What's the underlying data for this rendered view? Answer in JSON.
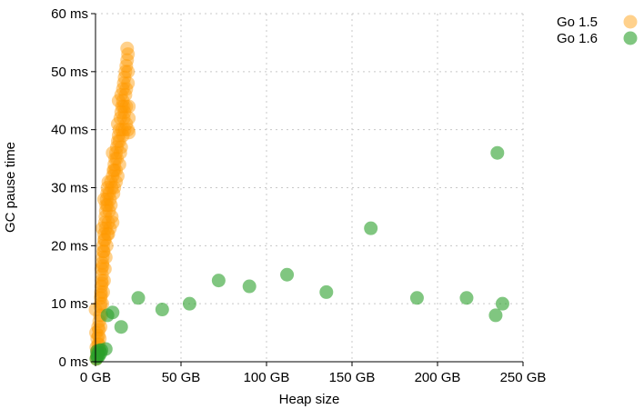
{
  "chart_data": {
    "type": "scatter",
    "xlabel": "Heap size",
    "ylabel": "GC pause time",
    "xlim": [
      0,
      250
    ],
    "ylim": [
      0,
      60
    ],
    "x_ticks": [
      {
        "value": 0,
        "label": "0 GB"
      },
      {
        "value": 50,
        "label": "50 GB"
      },
      {
        "value": 100,
        "label": "100 GB"
      },
      {
        "value": 150,
        "label": "150 GB"
      },
      {
        "value": 200,
        "label": "200 GB"
      },
      {
        "value": 250,
        "label": "250 GB"
      }
    ],
    "y_ticks": [
      {
        "value": 0,
        "label": "0 ms"
      },
      {
        "value": 10,
        "label": "10 ms"
      },
      {
        "value": 20,
        "label": "20 ms"
      },
      {
        "value": 30,
        "label": "30 ms"
      },
      {
        "value": 40,
        "label": "40 ms"
      },
      {
        "value": 50,
        "label": "50 ms"
      },
      {
        "value": 60,
        "label": "60 ms"
      }
    ],
    "grid": true,
    "legend_position": "top-right",
    "series": [
      {
        "name": "Go 1.5",
        "color": "#ff9900",
        "opacity": 0.45,
        "points": [
          [
            0.5,
            0.5
          ],
          [
            0.8,
            1.0
          ],
          [
            1.0,
            1.5
          ],
          [
            1.2,
            2.0
          ],
          [
            0.5,
            2.5
          ],
          [
            1.5,
            3.0
          ],
          [
            1.0,
            4.0
          ],
          [
            1.8,
            4.5
          ],
          [
            0.3,
            5.0
          ],
          [
            2.0,
            5.5
          ],
          [
            1.5,
            6.0
          ],
          [
            2.2,
            7.0
          ],
          [
            2.5,
            8.0
          ],
          [
            0.0,
            9.0
          ],
          [
            2.8,
            9.5
          ],
          [
            3.0,
            10.0
          ],
          [
            3.0,
            11.0
          ],
          [
            3.2,
            12.0
          ],
          [
            3.4,
            13.0
          ],
          [
            3.6,
            14.0
          ],
          [
            3.8,
            15.0
          ],
          [
            3.5,
            16.0
          ],
          [
            4.0,
            17.0
          ],
          [
            4.2,
            18.0
          ],
          [
            4.5,
            19.0
          ],
          [
            4.5,
            20.0
          ],
          [
            5.0,
            21.0
          ],
          [
            4.0,
            23.0
          ],
          [
            5.0,
            22.0
          ],
          [
            5.5,
            24.0
          ],
          [
            5.8,
            25.0
          ],
          [
            6.0,
            26.0
          ],
          [
            6.2,
            27.0
          ],
          [
            6.5,
            28.0
          ],
          [
            6.8,
            29.0
          ],
          [
            7.0,
            30.0
          ],
          [
            5.0,
            28.0
          ],
          [
            7.5,
            31.0
          ],
          [
            9.0,
            31.0
          ],
          [
            10.0,
            32.0
          ],
          [
            10.5,
            33.0
          ],
          [
            11.0,
            34.0
          ],
          [
            11.5,
            35.0
          ],
          [
            12.0,
            36.0
          ],
          [
            12.5,
            37.0
          ],
          [
            13.0,
            38.0
          ],
          [
            13.5,
            39.0
          ],
          [
            14.0,
            40.0
          ],
          [
            13.0,
            41.0
          ],
          [
            14.5,
            42.0
          ],
          [
            15.0,
            43.0
          ],
          [
            13.5,
            45.0
          ],
          [
            15.5,
            44.0
          ],
          [
            15.0,
            46.0
          ],
          [
            16.0,
            47.0
          ],
          [
            16.5,
            48.0
          ],
          [
            17.0,
            49.0
          ],
          [
            17.5,
            50.0
          ],
          [
            18.0,
            51.0
          ],
          [
            18.5,
            52.0
          ],
          [
            18.5,
            54.0
          ],
          [
            19.0,
            53.0
          ],
          [
            16.0,
            45.0
          ],
          [
            17.0,
            43.0
          ],
          [
            18.0,
            41.0
          ],
          [
            19.0,
            40.0
          ],
          [
            19.5,
            39.5
          ],
          [
            17.5,
            46.0
          ],
          [
            18.0,
            44.0
          ],
          [
            16.5,
            42.0
          ],
          [
            15.5,
            40.0
          ],
          [
            14.0,
            38.0
          ],
          [
            12.5,
            35.0
          ],
          [
            11.0,
            33.0
          ],
          [
            9.5,
            30.0
          ],
          [
            8.5,
            28.0
          ],
          [
            8.0,
            26.0
          ],
          [
            7.5,
            24.0
          ],
          [
            7.0,
            22.0
          ],
          [
            6.5,
            20.0
          ],
          [
            6.0,
            18.0
          ],
          [
            5.5,
            16.0
          ],
          [
            5.0,
            14.0
          ],
          [
            4.5,
            12.0
          ],
          [
            4.0,
            10.0
          ],
          [
            3.5,
            8.0
          ],
          [
            3.0,
            6.0
          ],
          [
            2.5,
            4.0
          ],
          [
            2.0,
            3.0
          ],
          [
            1.5,
            2.0
          ],
          [
            10.0,
            24.0
          ],
          [
            11.0,
            30.0
          ],
          [
            12.0,
            33.0
          ],
          [
            9.0,
            27.0
          ],
          [
            8.0,
            29.0
          ],
          [
            7.0,
            27.0
          ],
          [
            6.0,
            23.0
          ],
          [
            5.5,
            21.0
          ],
          [
            4.8,
            19.0
          ],
          [
            4.2,
            16.5
          ],
          [
            3.8,
            13.5
          ],
          [
            3.3,
            11.5
          ],
          [
            19.0,
            48.0
          ],
          [
            18.0,
            47.0
          ],
          [
            19.5,
            44.0
          ],
          [
            17.0,
            40.0
          ],
          [
            16.0,
            39.0
          ],
          [
            15.0,
            37.0
          ],
          [
            14.0,
            34.0
          ],
          [
            13.0,
            32.0
          ],
          [
            12.0,
            31.0
          ],
          [
            10.5,
            29.0
          ],
          [
            9.5,
            25.0
          ],
          [
            8.5,
            23.0
          ],
          [
            7.5,
            22.0
          ],
          [
            10.0,
            36.0
          ],
          [
            14.5,
            36.0
          ],
          [
            16.5,
            44.0
          ],
          [
            19.5,
            42.0
          ],
          [
            19.0,
            50.0
          ]
        ]
      },
      {
        "name": "Go 1.6",
        "color": "#2ca02c",
        "opacity": 0.6,
        "points": [
          [
            0.5,
            0.5
          ],
          [
            1.0,
            1.0
          ],
          [
            1.5,
            1.5
          ],
          [
            2.0,
            1.0
          ],
          [
            0.8,
            1.8
          ],
          [
            2.5,
            2.0
          ],
          [
            3.0,
            1.5
          ],
          [
            1.2,
            0.8
          ],
          [
            3.5,
            2.0
          ],
          [
            6.0,
            2.2
          ],
          [
            7.0,
            8.0
          ],
          [
            10.0,
            8.5
          ],
          [
            15.0,
            6.0
          ],
          [
            25.0,
            11.0
          ],
          [
            39.0,
            9.0
          ],
          [
            55.0,
            10.0
          ],
          [
            72.0,
            14.0
          ],
          [
            90.0,
            13.0
          ],
          [
            112.0,
            15.0
          ],
          [
            135.0,
            12.0
          ],
          [
            161.0,
            23.0
          ],
          [
            188.0,
            11.0
          ],
          [
            217.0,
            11.0
          ],
          [
            234.0,
            8.0
          ],
          [
            235.0,
            36.0
          ],
          [
            238.0,
            10.0
          ]
        ]
      }
    ]
  }
}
